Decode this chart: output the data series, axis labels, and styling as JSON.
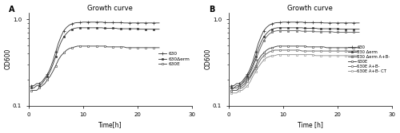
{
  "title": "Growth curve",
  "xlabel_A": "Time[h]",
  "xlabel_B": "Time [h]",
  "ylabel": "OD600",
  "xlim": [
    0,
    30
  ],
  "xticks": [
    0,
    10,
    20,
    30
  ],
  "panel_A_label": "A",
  "panel_B_label": "B",
  "legend_A": [
    "630",
    "630Δerm",
    "630E"
  ],
  "legend_B": [
    "630",
    "630 Δerm",
    "630 Δerm A+B-",
    "630E",
    "630E A+B-",
    "630E A+B- CT"
  ],
  "time_points": [
    0.5,
    1.0,
    1.5,
    2.0,
    2.5,
    3.0,
    3.5,
    4.0,
    4.5,
    5.0,
    5.5,
    6.0,
    6.5,
    7.0,
    7.5,
    8.0,
    8.5,
    9.0,
    9.5,
    10.0,
    10.5,
    11.0,
    11.5,
    12.0,
    12.5,
    13.0,
    13.5,
    14.0,
    14.5,
    15.0,
    15.5,
    16.0,
    16.5,
    17.0,
    17.5,
    18.0,
    18.5,
    19.0,
    19.5,
    20.0,
    20.5,
    21.0,
    21.5,
    22.0,
    22.5,
    23.0,
    23.5,
    24.0
  ],
  "curve_630": [
    0.17,
    0.17,
    0.18,
    0.18,
    0.19,
    0.21,
    0.23,
    0.27,
    0.33,
    0.42,
    0.53,
    0.64,
    0.74,
    0.81,
    0.86,
    0.89,
    0.91,
    0.92,
    0.92,
    0.93,
    0.93,
    0.93,
    0.93,
    0.93,
    0.93,
    0.93,
    0.93,
    0.92,
    0.92,
    0.92,
    0.92,
    0.92,
    0.92,
    0.92,
    0.91,
    0.91,
    0.91,
    0.91,
    0.91,
    0.91,
    0.91,
    0.91,
    0.91,
    0.91,
    0.91,
    0.91,
    0.91,
    0.91
  ],
  "curve_630derm": [
    0.16,
    0.16,
    0.17,
    0.17,
    0.18,
    0.2,
    0.22,
    0.25,
    0.3,
    0.37,
    0.46,
    0.55,
    0.63,
    0.69,
    0.74,
    0.77,
    0.79,
    0.8,
    0.8,
    0.8,
    0.8,
    0.8,
    0.8,
    0.8,
    0.8,
    0.8,
    0.8,
    0.79,
    0.79,
    0.79,
    0.79,
    0.79,
    0.78,
    0.78,
    0.78,
    0.78,
    0.78,
    0.78,
    0.78,
    0.78,
    0.77,
    0.77,
    0.77,
    0.77,
    0.77,
    0.77,
    0.77,
    0.77
  ],
  "curve_630E": [
    0.15,
    0.15,
    0.15,
    0.16,
    0.17,
    0.18,
    0.2,
    0.22,
    0.25,
    0.29,
    0.34,
    0.38,
    0.41,
    0.44,
    0.46,
    0.47,
    0.48,
    0.49,
    0.49,
    0.49,
    0.49,
    0.49,
    0.49,
    0.49,
    0.49,
    0.49,
    0.49,
    0.49,
    0.48,
    0.48,
    0.48,
    0.48,
    0.48,
    0.48,
    0.48,
    0.47,
    0.47,
    0.47,
    0.47,
    0.47,
    0.47,
    0.47,
    0.47,
    0.47,
    0.47,
    0.47,
    0.47,
    0.47
  ],
  "curve_630derm_AB": [
    0.15,
    0.16,
    0.16,
    0.17,
    0.18,
    0.19,
    0.21,
    0.24,
    0.28,
    0.34,
    0.41,
    0.49,
    0.57,
    0.63,
    0.68,
    0.71,
    0.73,
    0.74,
    0.74,
    0.74,
    0.74,
    0.74,
    0.74,
    0.74,
    0.74,
    0.74,
    0.73,
    0.73,
    0.73,
    0.73,
    0.73,
    0.72,
    0.72,
    0.72,
    0.72,
    0.72,
    0.72,
    0.72,
    0.71,
    0.71,
    0.71,
    0.71,
    0.71,
    0.71,
    0.71,
    0.71,
    0.71,
    0.71
  ],
  "curve_630E_AB": [
    0.15,
    0.15,
    0.15,
    0.16,
    0.16,
    0.17,
    0.19,
    0.21,
    0.24,
    0.27,
    0.31,
    0.35,
    0.38,
    0.4,
    0.42,
    0.43,
    0.44,
    0.44,
    0.44,
    0.44,
    0.44,
    0.44,
    0.44,
    0.44,
    0.44,
    0.44,
    0.43,
    0.43,
    0.43,
    0.43,
    0.43,
    0.43,
    0.43,
    0.43,
    0.43,
    0.43,
    0.43,
    0.43,
    0.43,
    0.43,
    0.43,
    0.43,
    0.43,
    0.43,
    0.43,
    0.43,
    0.43,
    0.43
  ],
  "curve_630E_AB_CT": [
    0.14,
    0.14,
    0.14,
    0.15,
    0.15,
    0.16,
    0.17,
    0.19,
    0.22,
    0.25,
    0.28,
    0.31,
    0.34,
    0.36,
    0.37,
    0.38,
    0.38,
    0.39,
    0.39,
    0.39,
    0.39,
    0.39,
    0.39,
    0.39,
    0.39,
    0.39,
    0.39,
    0.39,
    0.39,
    0.39,
    0.39,
    0.38,
    0.38,
    0.38,
    0.38,
    0.38,
    0.38,
    0.38,
    0.38,
    0.38,
    0.38,
    0.38,
    0.38,
    0.38,
    0.38,
    0.38,
    0.38,
    0.38
  ]
}
